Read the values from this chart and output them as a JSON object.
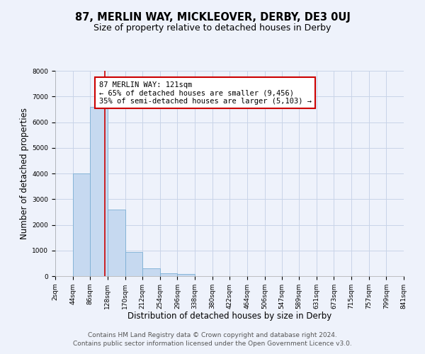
{
  "title": "87, MERLIN WAY, MICKLEOVER, DERBY, DE3 0UJ",
  "subtitle": "Size of property relative to detached houses in Derby",
  "xlabel": "Distribution of detached houses by size in Derby",
  "ylabel": "Number of detached properties",
  "bin_edges": [
    2,
    44,
    86,
    128,
    170,
    212,
    254,
    296,
    338,
    380,
    422,
    464,
    506,
    547,
    589,
    631,
    673,
    715,
    757,
    799,
    841
  ],
  "counts": [
    0,
    4000,
    6600,
    2600,
    950,
    300,
    120,
    80,
    0,
    0,
    0,
    0,
    0,
    0,
    0,
    0,
    0,
    0,
    0,
    0
  ],
  "property_size": 121,
  "bar_color": "#c6d9f0",
  "bar_edge_color": "#7bafd4",
  "vline_color": "#cc0000",
  "annotation_text": "87 MERLIN WAY: 121sqm\n← 65% of detached houses are smaller (9,456)\n35% of semi-detached houses are larger (5,103) →",
  "annotation_box_color": "#ffffff",
  "annotation_box_edgecolor": "#cc0000",
  "ylim": [
    0,
    8000
  ],
  "yticks": [
    0,
    1000,
    2000,
    3000,
    4000,
    5000,
    6000,
    7000,
    8000
  ],
  "tick_labels": [
    "2sqm",
    "44sqm",
    "86sqm",
    "128sqm",
    "170sqm",
    "212sqm",
    "254sqm",
    "296sqm",
    "338sqm",
    "380sqm",
    "422sqm",
    "464sqm",
    "506sqm",
    "547sqm",
    "589sqm",
    "631sqm",
    "673sqm",
    "715sqm",
    "757sqm",
    "799sqm",
    "841sqm"
  ],
  "background_color": "#eef2fb",
  "grid_color": "#c8d4e8",
  "footer_text": "Contains HM Land Registry data © Crown copyright and database right 2024.\nContains public sector information licensed under the Open Government Licence v3.0.",
  "title_fontsize": 10.5,
  "subtitle_fontsize": 9,
  "label_fontsize": 8.5,
  "tick_fontsize": 6.5,
  "footer_fontsize": 6.5,
  "annot_fontsize": 7.5
}
